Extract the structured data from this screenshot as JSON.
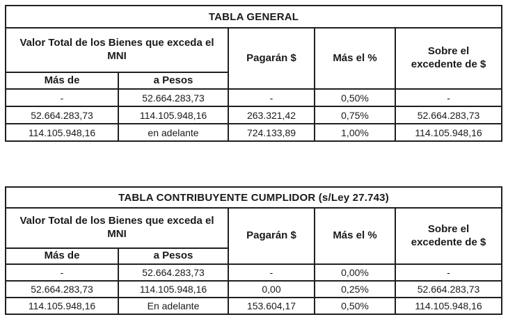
{
  "colors": {
    "background": "#ffffff",
    "border": "#1f1f1f",
    "text": "#1a1a1a"
  },
  "tables": [
    {
      "title": "TABLA GENERAL",
      "group_header": "Valor Total de los Bienes que exceda el MNI",
      "headers": [
        "Pagarán $",
        "Más el %",
        "Sobre el excedente de $"
      ],
      "subheaders": [
        "Más de",
        "a Pesos"
      ],
      "rows": [
        [
          "-",
          "52.664.283,73",
          "-",
          "0,50%",
          "-"
        ],
        [
          "52.664.283,73",
          "114.105.948,16",
          "263.321,42",
          "0,75%",
          "52.664.283,73"
        ],
        [
          "114.105.948,16",
          "en adelante",
          "724.133,89",
          "1,00%",
          "114.105.948,16"
        ]
      ]
    },
    {
      "title": "TABLA CONTRIBUYENTE CUMPLIDOR (s/Ley 27.743)",
      "group_header": "Valor Total de los Bienes que exceda el MNI",
      "headers": [
        "Pagarán $",
        "Más el %",
        "Sobre el excedente de $"
      ],
      "subheaders": [
        "Más de",
        "a Pesos"
      ],
      "rows": [
        [
          "-",
          "52.664.283,73",
          "-",
          "0,00%",
          "-"
        ],
        [
          "52.664.283,73",
          "114.105.948,16",
          "0,00",
          "0,25%",
          "52.664.283,73"
        ],
        [
          "114.105.948,16",
          "En adelante",
          "153.604,17",
          "0,50%",
          "114.105.948,16"
        ]
      ]
    }
  ]
}
